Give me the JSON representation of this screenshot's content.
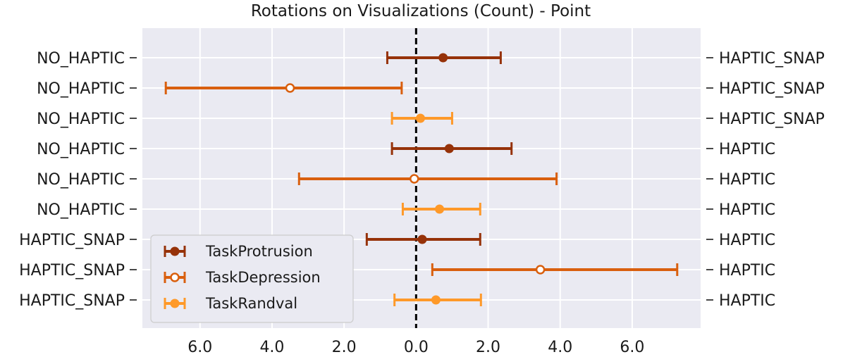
{
  "chart_data": {
    "type": "errorbar",
    "title": "Rotations on Visualizations (Count) - Point",
    "xlabel": "",
    "ylabel": "",
    "xlim": [
      -7.6,
      7.9
    ],
    "x_ticks": [
      {
        "value": -6,
        "label": "6.0"
      },
      {
        "value": -4,
        "label": "4.0"
      },
      {
        "value": -2,
        "label": "2.0"
      },
      {
        "value": 0,
        "label": "0.0"
      },
      {
        "value": 2,
        "label": "2.0"
      },
      {
        "value": 4,
        "label": "4.0"
      },
      {
        "value": 6,
        "label": "6.0"
      }
    ],
    "left_labels": [
      "NO_HAPTIC",
      "NO_HAPTIC",
      "NO_HAPTIC",
      "NO_HAPTIC",
      "NO_HAPTIC",
      "NO_HAPTIC",
      "HAPTIC_SNAP",
      "HAPTIC_SNAP",
      "HAPTIC_SNAP"
    ],
    "right_labels": [
      "HAPTIC_SNAP",
      "HAPTIC_SNAP",
      "HAPTIC_SNAP",
      "HAPTIC",
      "HAPTIC",
      "HAPTIC",
      "HAPTIC",
      "HAPTIC",
      "HAPTIC"
    ],
    "series": [
      {
        "name": "TaskProtrusion",
        "color": "#963209",
        "marker": "filled",
        "rows": [
          0,
          3,
          6
        ],
        "points": [
          {
            "value": 0.75,
            "low": -0.8,
            "high": 2.35
          },
          {
            "value": 0.92,
            "low": -0.67,
            "high": 2.65
          },
          {
            "value": 0.17,
            "low": -1.37,
            "high": 1.78
          }
        ]
      },
      {
        "name": "TaskDepression",
        "color": "#d95f0e",
        "marker": "open",
        "rows": [
          1,
          4,
          7
        ],
        "points": [
          {
            "value": -3.5,
            "low": -6.95,
            "high": -0.4
          },
          {
            "value": -0.05,
            "low": -3.25,
            "high": 3.9
          },
          {
            "value": 3.45,
            "low": 0.45,
            "high": 7.25
          }
        ]
      },
      {
        "name": "TaskRandval",
        "color": "#fe9929",
        "marker": "filled",
        "rows": [
          2,
          5,
          8
        ],
        "points": [
          {
            "value": 0.12,
            "low": -0.67,
            "high": 1.0
          },
          {
            "value": 0.65,
            "low": -0.37,
            "high": 1.78
          },
          {
            "value": 0.55,
            "low": -0.6,
            "high": 1.8
          }
        ]
      }
    ],
    "reference_line": {
      "value": 0,
      "color": "#000000",
      "style": "dashed"
    },
    "legend": {
      "position": "lower-left"
    },
    "grid": true
  }
}
